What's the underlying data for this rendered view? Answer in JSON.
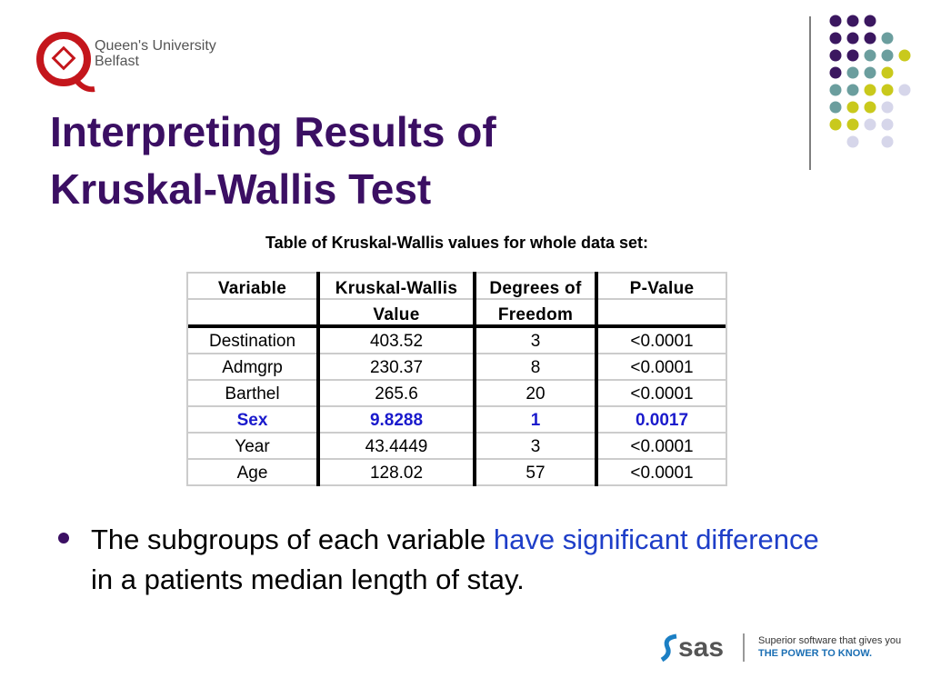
{
  "logo": {
    "line1": "Queen's University",
    "line2": "Belfast"
  },
  "title": {
    "line1": "Interpreting Results of",
    "line2": "Kruskal-Wallis Test"
  },
  "table": {
    "caption": "Table of Kruskal-Wallis values for whole data set:",
    "header": [
      [
        "Variable"
      ],
      [
        "Kruskal-Wallis",
        "Value"
      ],
      [
        "Degrees of",
        "Freedom"
      ],
      [
        "P-Value"
      ]
    ],
    "rows": [
      [
        "Destination",
        403.52,
        3,
        "<0.0001"
      ],
      [
        "Admgrp",
        230.37,
        8,
        "<0.0001"
      ],
      [
        "Barthel",
        265.6,
        20,
        "<0.0001"
      ],
      [
        "Sex",
        9.8288,
        1,
        0.0017
      ],
      [
        "Year",
        43.4449,
        3,
        "<0.0001"
      ],
      [
        "Age",
        128.02,
        57,
        "<0.0001"
      ]
    ],
    "highlight_row": 3,
    "highlight_color": "#1a1acc"
  },
  "bullet": {
    "segments": [
      {
        "text": "The subgroups of each variable ",
        "emphasis": false
      },
      {
        "text": "have significant difference",
        "emphasis": true
      },
      {
        "text": " in a patients median length of stay.",
        "emphasis": false
      }
    ],
    "emphasis_color": "#1e3ec8"
  },
  "footer": {
    "brand": "sas",
    "tagline1": "Superior software that gives you",
    "tagline2": "THE POWER TO KNOW."
  }
}
